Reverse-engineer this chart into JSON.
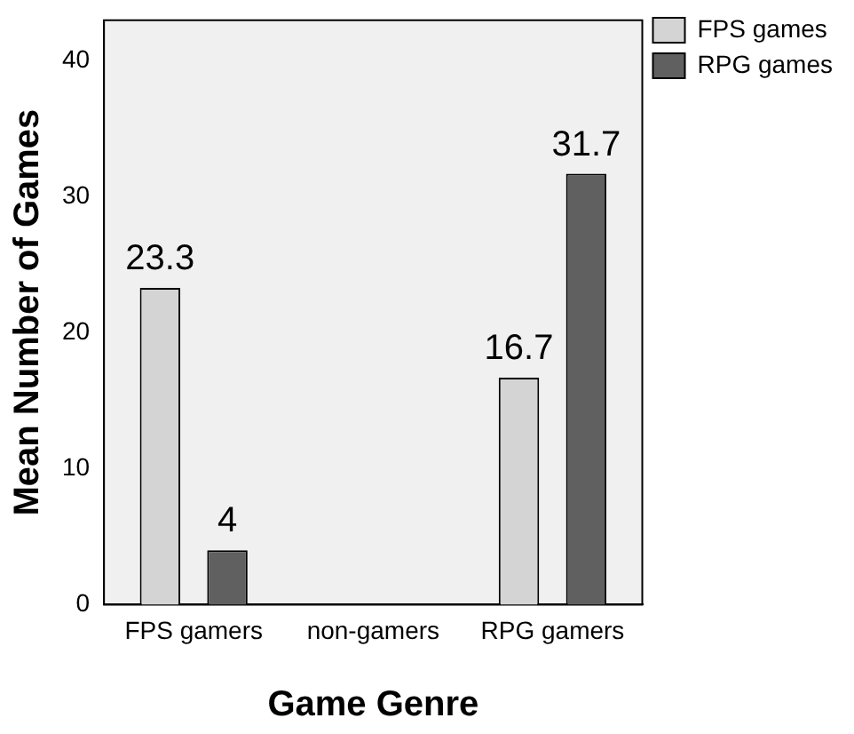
{
  "chart_data": {
    "type": "bar",
    "xlabel": "Game Genre",
    "ylabel": "Mean Number of Games",
    "categories": [
      "FPS gamers",
      "non-gamers",
      "RPG gamers"
    ],
    "series": [
      {
        "name": "FPS games",
        "color": "#d4d4d4",
        "values": [
          23.3,
          0,
          16.7
        ],
        "value_labels": [
          "23.3",
          null,
          "16.7"
        ]
      },
      {
        "name": "RPG games",
        "color": "#606060",
        "values": [
          4,
          0,
          31.7
        ],
        "value_labels": [
          "4",
          null,
          "31.7"
        ]
      }
    ],
    "ylim": [
      0,
      43
    ],
    "yticks": [
      0,
      10,
      20,
      30,
      40
    ],
    "grid": false,
    "legend": "top right"
  }
}
